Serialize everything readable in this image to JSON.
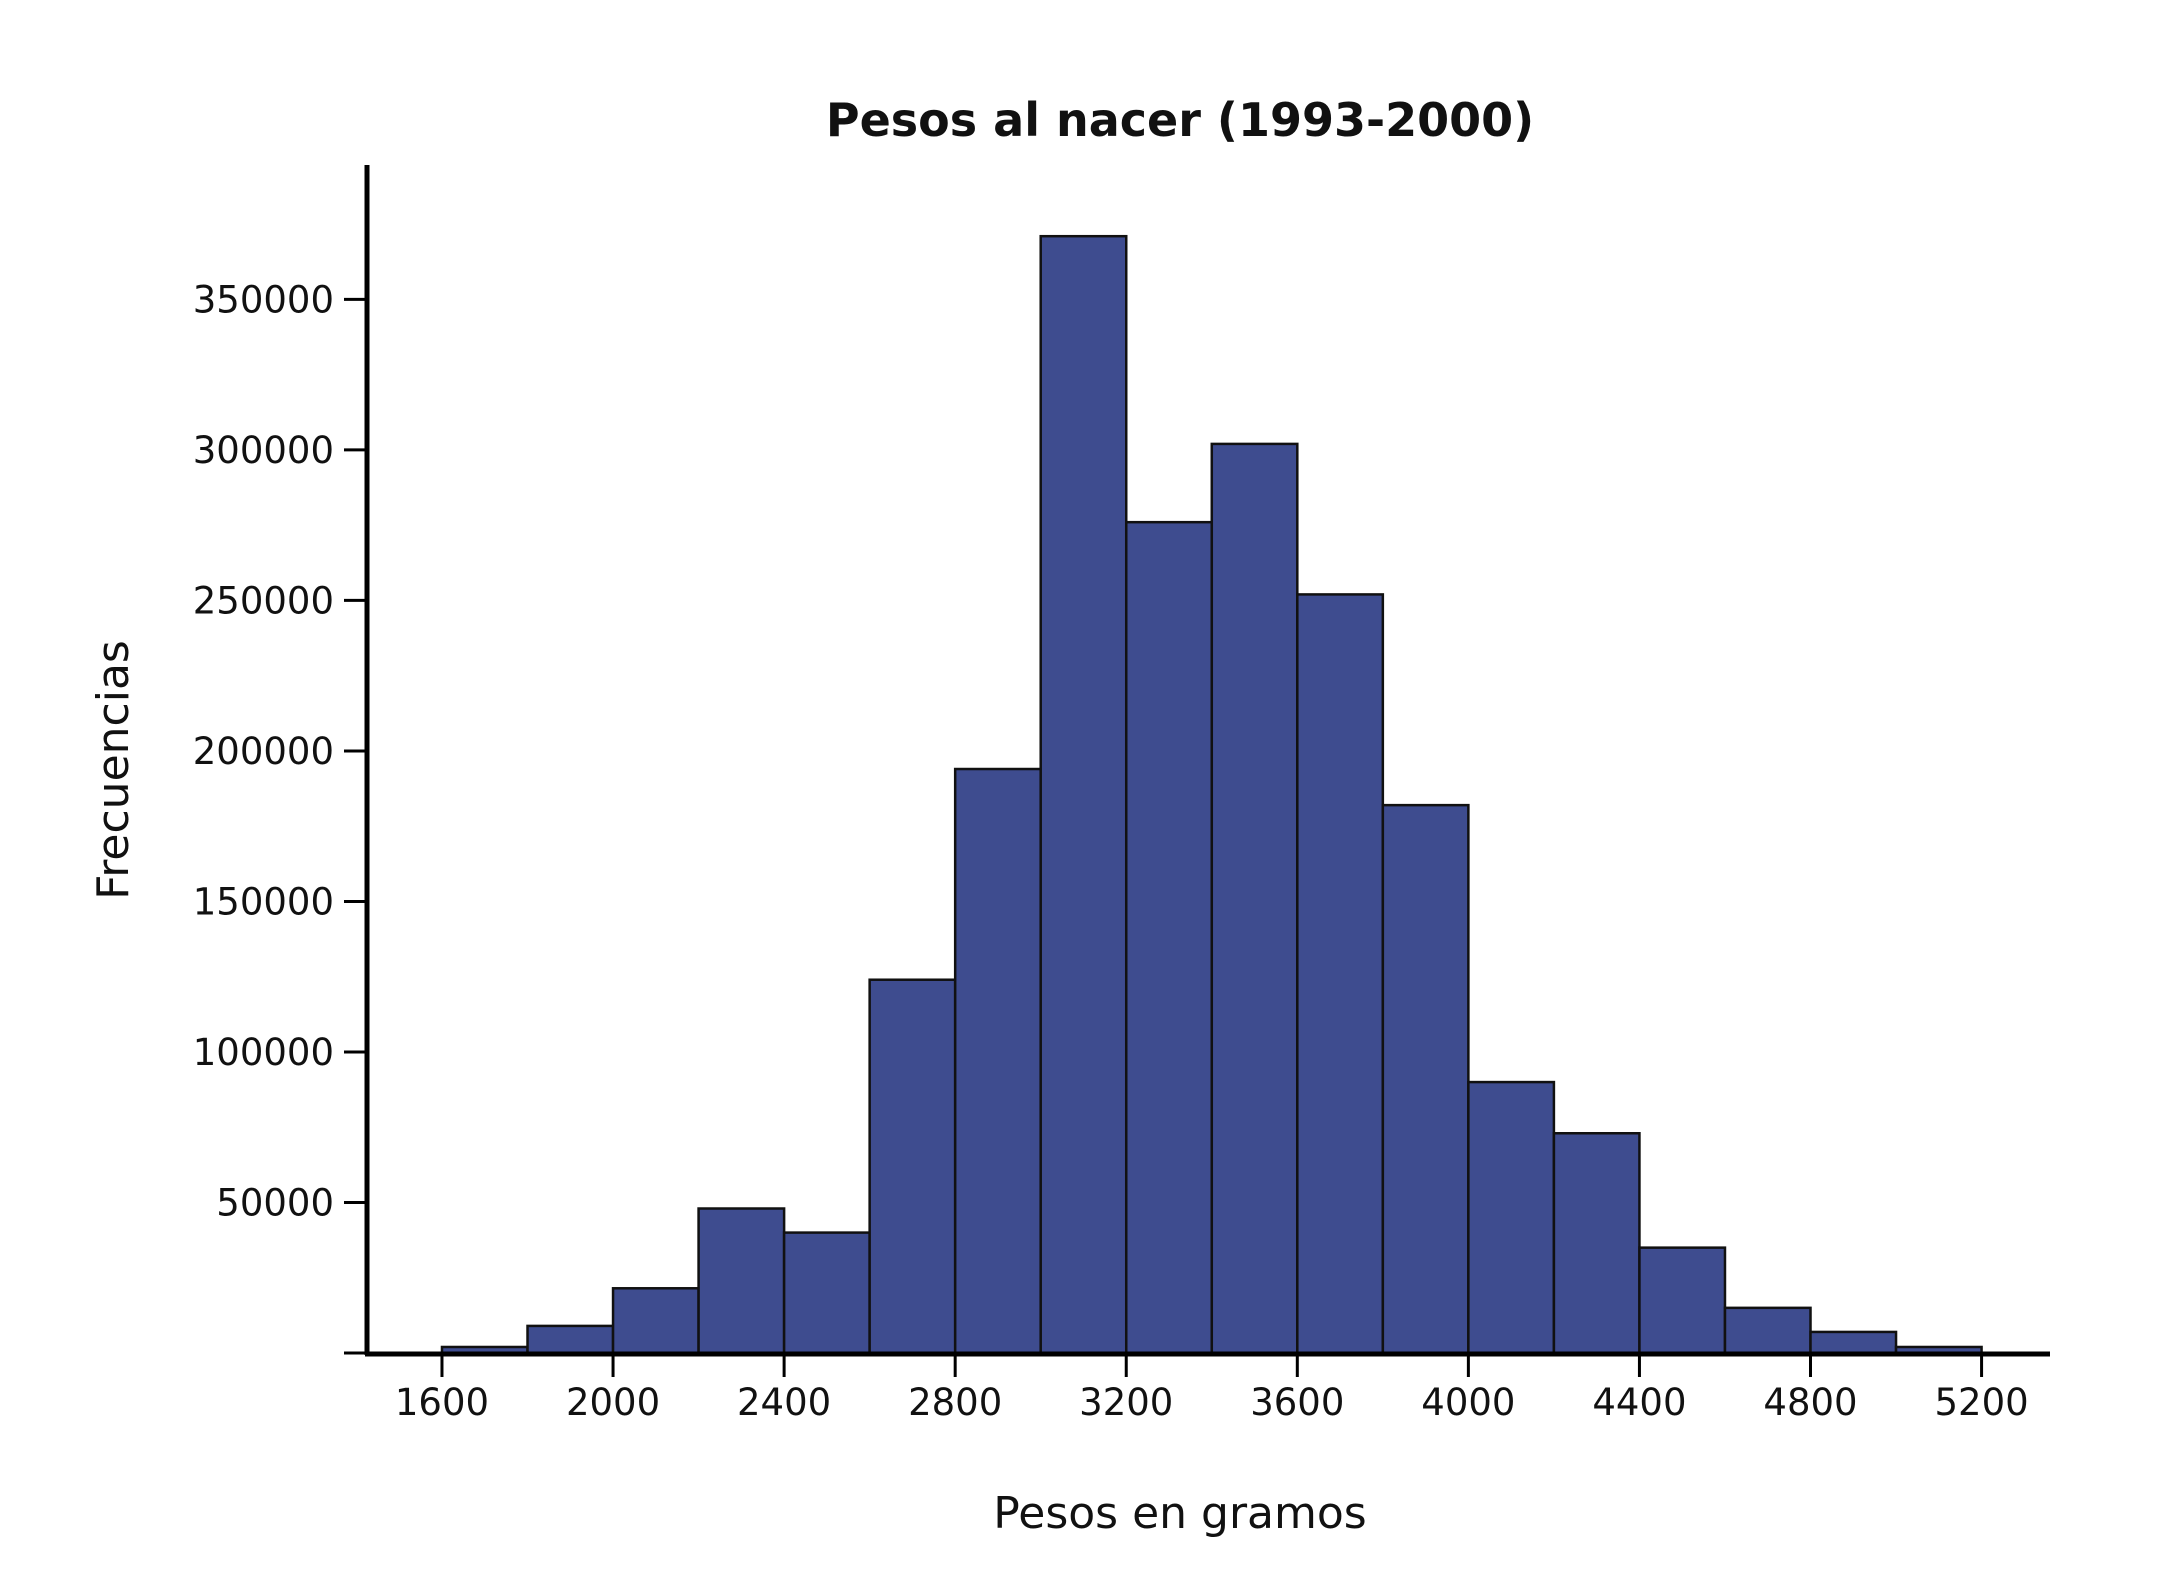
{
  "chart_data": {
    "type": "bar",
    "title": "Pesos al nacer (1993-2000)",
    "xlabel": "Pesos en gramos",
    "ylabel": "Frecuencias",
    "bin_width": 200,
    "bins_start": [
      1600,
      1800,
      2000,
      2200,
      2400,
      2600,
      2800,
      3000,
      3200,
      3400,
      3600,
      3800,
      4000,
      4200,
      4400,
      4600,
      4800,
      5000
    ],
    "values": [
      2000,
      9000,
      21500,
      48000,
      40000,
      124000,
      194000,
      371000,
      276000,
      302000,
      252000,
      182000,
      90000,
      73000,
      35000,
      15000,
      7000,
      2000
    ],
    "xlim": [
      1420,
      5360
    ],
    "ylim": [
      0,
      390000
    ],
    "x_ticks": [
      1600,
      2000,
      2400,
      2800,
      3200,
      3600,
      4000,
      4400,
      4800,
      5200
    ],
    "x_tick_labels": [
      "1600",
      "2000",
      "2400",
      "2800",
      "3200",
      "3600",
      "4000",
      "4400",
      "4800",
      "5200"
    ],
    "y_ticks": [
      0,
      50000,
      100000,
      150000,
      200000,
      250000,
      300000,
      350000
    ],
    "y_tick_labels": [
      "",
      "50000",
      "100000",
      "150000",
      "200000",
      "250000",
      "300000",
      "350000"
    ],
    "bar_color": "#3e4c8f",
    "edge_color": "#111111",
    "grid": false,
    "legend": "none"
  }
}
